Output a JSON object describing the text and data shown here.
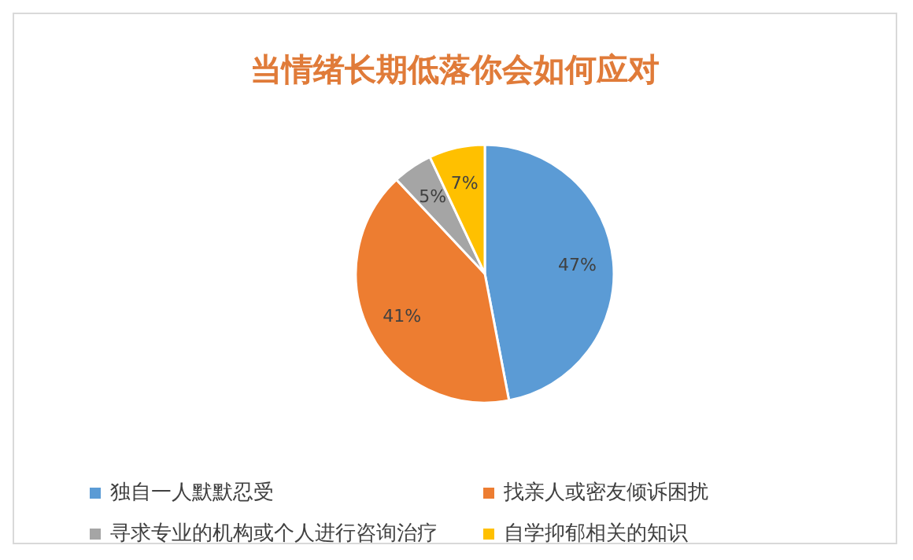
{
  "chart_data": {
    "type": "pie",
    "title": "当情绪长期低落你会如何应对",
    "categories": [
      "独自一人默默忍受",
      "找亲人或密友倾诉困扰",
      "寻求专业的机构或个人进行咨询治疗",
      "自学抑郁相关的知识"
    ],
    "values": [
      47,
      41,
      5,
      7
    ],
    "colors": [
      "#5b9bd5",
      "#ed7d31",
      "#a5a5a5",
      "#ffc000"
    ],
    "value_labels": [
      "47%",
      "41%",
      "5%",
      "7%"
    ],
    "legend": "bottom"
  }
}
